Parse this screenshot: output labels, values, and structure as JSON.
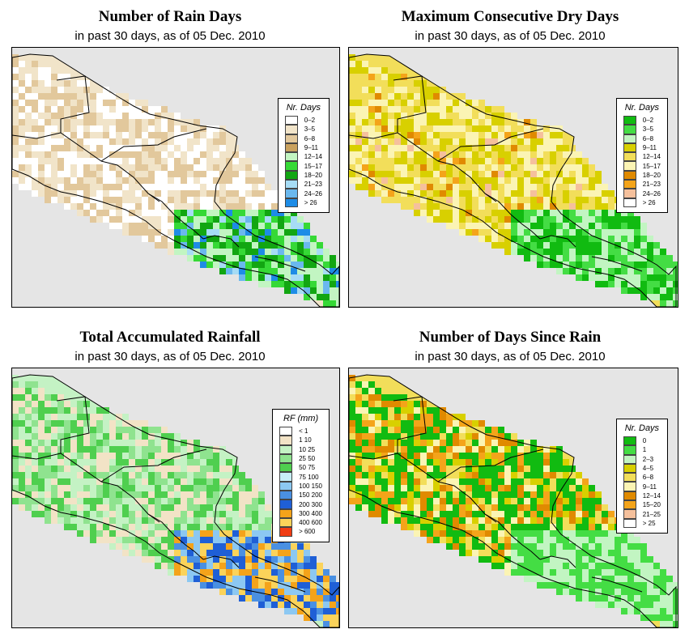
{
  "colors": {
    "ocean": "#e5e5e5",
    "border": "#000000"
  },
  "panels": [
    {
      "title": "Number of Rain Days",
      "subtitle": "in past 30 days, as of  05 Dec. 2010",
      "legend_title": "Nr. Days",
      "legend": [
        {
          "label": "0–2",
          "color": "#ffffff"
        },
        {
          "label": "3–5",
          "color": "#f1e4c9"
        },
        {
          "label": "6–8",
          "color": "#e2c89c"
        },
        {
          "label": "9–11",
          "color": "#c9a15e"
        },
        {
          "label": "12–14",
          "color": "#c2f5c2"
        },
        {
          "label": "15–17",
          "color": "#36d936"
        },
        {
          "label": "18–20",
          "color": "#12a612"
        },
        {
          "label": "21–23",
          "color": "#a6dcf5"
        },
        {
          "label": "24–26",
          "color": "#6ab8ee"
        },
        {
          "label": "> 26",
          "color": "#1e8ce6"
        }
      ]
    },
    {
      "title": "Maximum Consecutive Dry Days",
      "subtitle": "in past 30 days, as of  05 Dec. 2010",
      "legend_title": "Nr. Days",
      "legend": [
        {
          "label": "0–2",
          "color": "#11bb11"
        },
        {
          "label": "3–5",
          "color": "#44dd44"
        },
        {
          "label": "6–8",
          "color": "#c2f5c2"
        },
        {
          "label": "9–11",
          "color": "#d8d000"
        },
        {
          "label": "12–14",
          "color": "#f2de5a"
        },
        {
          "label": "15–17",
          "color": "#fbf4b4"
        },
        {
          "label": "18–20",
          "color": "#e08a00"
        },
        {
          "label": "21–23",
          "color": "#f4a41a"
        },
        {
          "label": "24–26",
          "color": "#f5c09c"
        },
        {
          "label": "> 26",
          "color": "#ffffff"
        }
      ]
    },
    {
      "title": "Total Accumulated Rainfall",
      "subtitle": "in past 30 days, as of  05 Dec. 2010",
      "legend_title": "RF (mm)",
      "legend": [
        {
          "label": "< 1",
          "color": "#ffffff"
        },
        {
          "label": "1   10",
          "color": "#f2e3c6"
        },
        {
          "label": "10   25",
          "color": "#c4f2c4"
        },
        {
          "label": "25   50",
          "color": "#8fe38f"
        },
        {
          "label": "50   75",
          "color": "#4fcf4f"
        },
        {
          "label": "75   100",
          "color": "#c6eef8"
        },
        {
          "label": "100   150",
          "color": "#8cc8f2"
        },
        {
          "label": "150   200",
          "color": "#4a90e2"
        },
        {
          "label": "200   300",
          "color": "#1f5fd6"
        },
        {
          "label": "300   400",
          "color": "#f4a31a"
        },
        {
          "label": "400   600",
          "color": "#fbd35a"
        },
        {
          "label": "> 600",
          "color": "#f03c14"
        }
      ]
    },
    {
      "title": "Number of Days Since Rain",
      "subtitle": "in past 30 days, as of  05 Dec. 2010",
      "legend_title": "Nr. Days",
      "legend": [
        {
          "label": "0",
          "color": "#11bb11"
        },
        {
          "label": "1",
          "color": "#44dd44"
        },
        {
          "label": "2–3",
          "color": "#c2f5c2"
        },
        {
          "label": "4–5",
          "color": "#d8d000"
        },
        {
          "label": "6–8",
          "color": "#f2de5a"
        },
        {
          "label": "9–11",
          "color": "#fbf4b4"
        },
        {
          "label": "12–14",
          "color": "#e08a00"
        },
        {
          "label": "15–20",
          "color": "#f4a41a"
        },
        {
          "label": "21–25",
          "color": "#f5c09c"
        },
        {
          "label": "> 25",
          "color": "#ffffff"
        }
      ]
    }
  ]
}
